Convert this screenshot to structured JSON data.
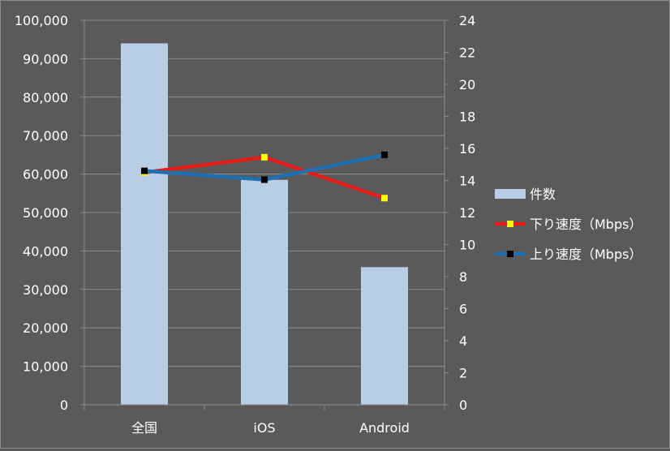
{
  "colors": {
    "background": "#5a5a5a",
    "plot_background": "#595959",
    "gridline": "#8c8c8c",
    "bar": "#b9cde5",
    "line_down": "#e41b17",
    "line_up": "#1f6fb3",
    "marker_down": "#ffff00",
    "marker_up": "#000000",
    "text": "#ffffff"
  },
  "chart_data": {
    "type": "bar",
    "categories": [
      "全国",
      "iOS",
      "Android"
    ],
    "y_left": {
      "min": 0,
      "max": 100000,
      "step": 10000
    },
    "y_right": {
      "min": 0,
      "max": 24,
      "step": 2
    },
    "left_ticks": [
      "0",
      "10,000",
      "20,000",
      "30,000",
      "40,000",
      "50,000",
      "60,000",
      "70,000",
      "80,000",
      "90,000",
      "100,000"
    ],
    "right_ticks": [
      "0",
      "2",
      "4",
      "6",
      "8",
      "10",
      "12",
      "14",
      "16",
      "18",
      "20",
      "22",
      "24"
    ],
    "series": [
      {
        "name": "件数",
        "type": "bar",
        "axis": "left",
        "values": [
          94000,
          58500,
          35800
        ]
      },
      {
        "name": "下り速度（Mbps）",
        "type": "line",
        "axis": "right",
        "values": [
          14.5,
          15.45,
          12.9
        ]
      },
      {
        "name": "上り速度（Mbps）",
        "type": "line",
        "axis": "right",
        "values": [
          14.6,
          14.05,
          15.6
        ]
      }
    ],
    "grid": true,
    "legend_position": "right"
  }
}
